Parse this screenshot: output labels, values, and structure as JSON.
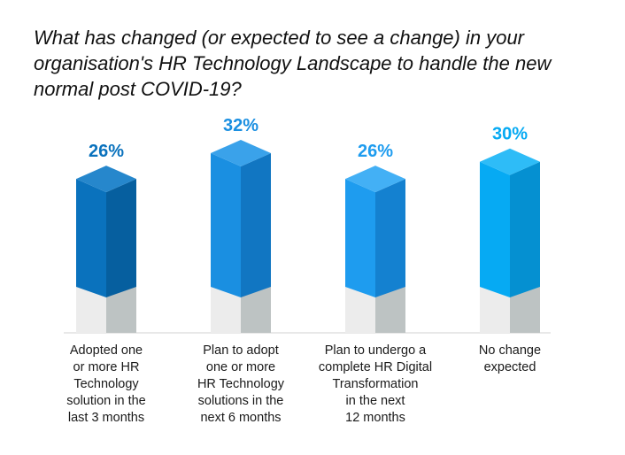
{
  "chart_data": {
    "type": "bar",
    "title": "What has changed (or expected to see a change) in your organisation's HR Technology Landscape to handle the new normal post COVID-19?",
    "categories": [
      [
        "Adopted one",
        "or more HR",
        "Technology",
        "solution in the",
        "last 3 months"
      ],
      [
        "Plan to adopt",
        "one or more",
        "HR Technology",
        "solutions in the",
        "next 6 months"
      ],
      [
        "Plan to undergo a",
        "complete HR Digital",
        "Transformation",
        "in the next",
        "12 months"
      ],
      [
        "No change",
        "expected"
      ]
    ],
    "values": [
      26,
      32,
      26,
      30
    ],
    "value_labels": [
      "26%",
      "32%",
      "26%",
      "30%"
    ],
    "ylim": [
      0,
      32
    ],
    "grid": false,
    "colors": {
      "bars": [
        {
          "front": "#0a72bd",
          "side": "#065f9f",
          "top": "#2687cc",
          "label": "#0a72bd"
        },
        {
          "front": "#1a8fe1",
          "side": "#1176c2",
          "top": "#3aa2ea",
          "label": "#1a8fe1"
        },
        {
          "front": "#1e9cef",
          "side": "#1481d0",
          "top": "#43b0f5",
          "label": "#1e9cef"
        },
        {
          "front": "#06aaf3",
          "side": "#0590d1",
          "top": "#2ebcf7",
          "label": "#06aaf3"
        }
      ],
      "pedestal_light": "#ececec",
      "pedestal_dark": "#bdc3c3",
      "baseline": "#d0d0d0"
    }
  }
}
